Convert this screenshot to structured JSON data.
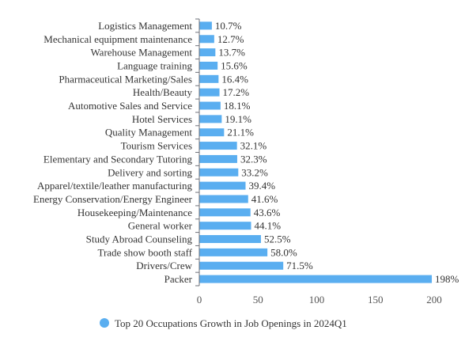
{
  "chart_data": {
    "type": "bar",
    "orientation": "horizontal",
    "categories": [
      "Logistics Management",
      "Mechanical equipment maintenance",
      "Warehouse Management",
      "Language training",
      "Pharmaceutical Marketing/Sales",
      "Health/Beauty",
      "Automotive Sales and Service",
      "Hotel Services",
      "Quality Management",
      "Tourism Services",
      "Elementary and Secondary Tutoring",
      "Delivery and sorting",
      "Apparel/textile/leather manufacturing",
      "Energy Conservation/Energy Engineer",
      "Housekeeping/Maintenance",
      "General worker",
      "Study Abroad Counseling",
      "Trade show booth staff",
      "Drivers/Crew",
      "Packer"
    ],
    "series": [
      {
        "name": "Top 20 Occupations Growth in Job Openings in 2024Q1",
        "values": [
          10.7,
          12.7,
          13.7,
          15.6,
          16.4,
          17.2,
          18.1,
          19.1,
          21.1,
          32.1,
          32.3,
          33.2,
          39.4,
          41.6,
          43.6,
          44.1,
          52.5,
          58.0,
          71.5,
          198
        ],
        "labels": [
          "10.7%",
          "12.7%",
          "13.7%",
          "15.6%",
          "16.4%",
          "17.2%",
          "18.1%",
          "19.1%",
          "21.1%",
          "32.1%",
          "32.3%",
          "33.2%",
          "39.4%",
          "41.6%",
          "43.6%",
          "44.1%",
          "52.5%",
          "58.0%",
          "71.5%",
          "198%"
        ],
        "color": "#5aaef0"
      }
    ],
    "x_ticks": [
      "0",
      "50",
      "100",
      "150",
      "200"
    ],
    "xlim": [
      0,
      200
    ],
    "grid": false,
    "legend": "bottom-center",
    "title": "",
    "xlabel": "",
    "ylabel": ""
  }
}
